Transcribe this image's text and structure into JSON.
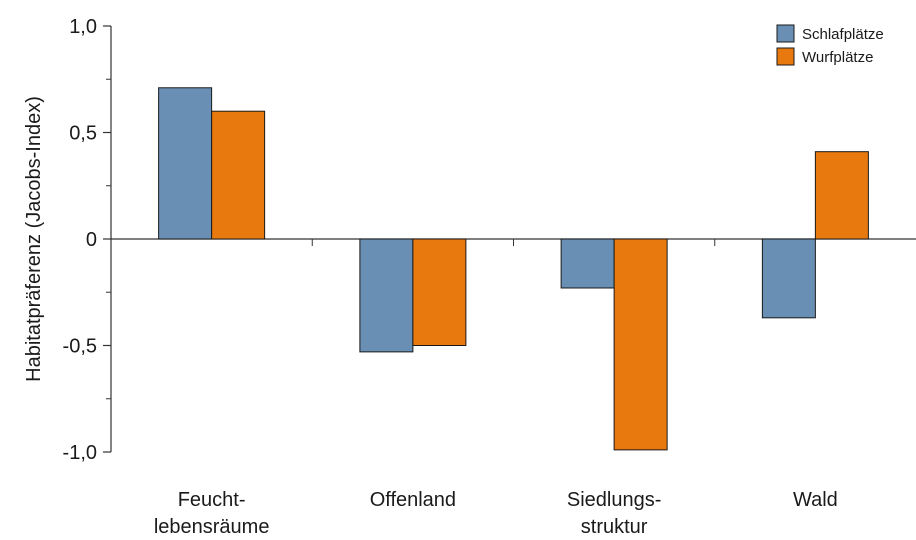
{
  "chart_data": {
    "type": "bar",
    "categories": [
      [
        "Feucht-",
        "lebensräume"
      ],
      [
        "Offenland"
      ],
      [
        "Siedlungs-",
        "struktur"
      ],
      [
        "Wald"
      ]
    ],
    "series": [
      {
        "name": "Schlafplätze",
        "color": "#6a8fb5",
        "values": [
          0.71,
          -0.53,
          -0.23,
          -0.37
        ]
      },
      {
        "name": "Wurfplätze",
        "color": "#e8790f",
        "values": [
          0.6,
          -0.5,
          -0.99,
          0.41
        ]
      }
    ],
    "ylabel": "Habitatpräferenz (Jacobs-Index)",
    "xlabel": "",
    "ylim": [
      -1.0,
      1.0
    ],
    "yticks": [
      {
        "value": 1.0,
        "label": "1,0"
      },
      {
        "value": 0.5,
        "label": "0,5"
      },
      {
        "value": 0.0,
        "label": "0"
      },
      {
        "value": -0.5,
        "label": "-0,5"
      },
      {
        "value": -1.0,
        "label": "-1,0"
      }
    ],
    "yminor": [
      0.75,
      0.25,
      -0.25,
      -0.75
    ],
    "grid": false,
    "legend_position": "top-right"
  }
}
